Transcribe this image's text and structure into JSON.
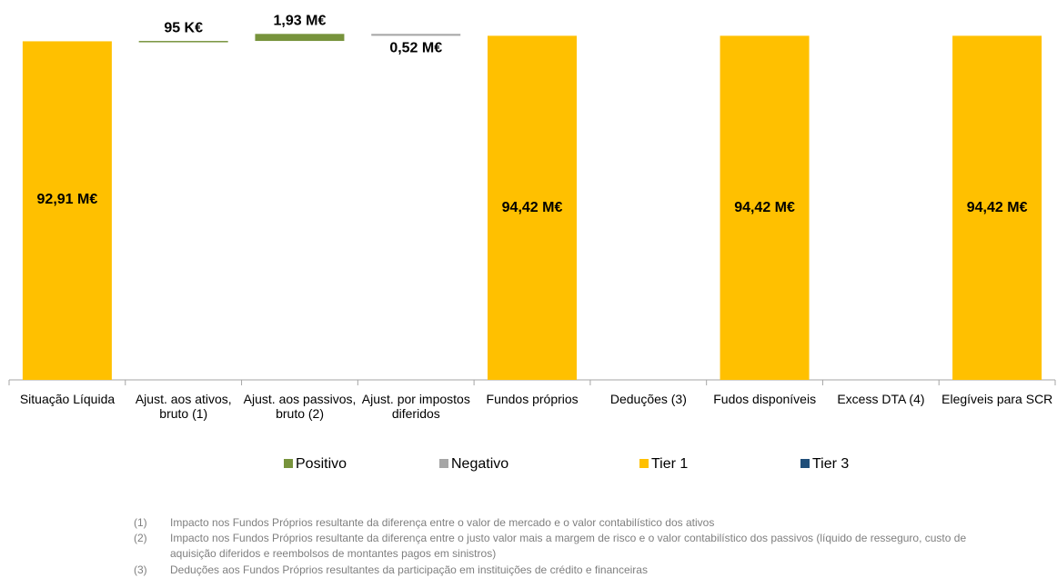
{
  "chart_data": {
    "type": "waterfall",
    "categories": [
      "Situação Líquida",
      "Ajust. aos ativos, bruto (1)",
      "Ajust. aos passivos, bruto (2)",
      "Ajust. por impostos diferidos",
      "Fundos próprios",
      "Deduções (3)",
      "Fudos disponíveis",
      "Excess DTA (4)",
      "Elegíveis para SCR"
    ],
    "series": [
      {
        "name": "Positivo",
        "color": "#77933c",
        "values": [
          null,
          0.095,
          1.93,
          null,
          null,
          null,
          null,
          null,
          null
        ],
        "value_labels": [
          null,
          "95 K€",
          "1,93 M€",
          null,
          null,
          null,
          null,
          null,
          null
        ]
      },
      {
        "name": "Negativo",
        "color": "#a6a6a6",
        "values": [
          null,
          null,
          null,
          0.52,
          null,
          null,
          null,
          null,
          null
        ],
        "value_labels": [
          null,
          null,
          null,
          "0,52 M€",
          null,
          null,
          null,
          null,
          null
        ]
      },
      {
        "name": "Tier 1",
        "color": "#ffc000",
        "values": [
          92.91,
          null,
          null,
          null,
          94.42,
          null,
          94.42,
          null,
          94.42
        ],
        "value_labels": [
          "92,91 M€",
          null,
          null,
          null,
          "94,42 M€",
          null,
          "94,42 M€",
          null,
          "94,42 M€"
        ]
      },
      {
        "name": "Tier 3",
        "color": "#1f4e79",
        "values": [
          null,
          null,
          null,
          null,
          null,
          null,
          null,
          null,
          null
        ],
        "value_labels": [
          null,
          null,
          null,
          null,
          null,
          null,
          null,
          null,
          null
        ]
      }
    ]
  },
  "notes": [
    {
      "number": "(1)",
      "text": "Impacto nos Fundos Próprios resultante da diferença entre o valor de mercado e o valor contabilístico dos ativos"
    },
    {
      "number": "(2)",
      "text": "Impacto nos Fundos Próprios resultante da diferença entre o justo valor mais a margem de risco e o valor contabilístico dos passivos (líquido de resseguro, custo de aquisição diferidos e reembolsos de montantes pagos em sinistros)"
    },
    {
      "number": "(3)",
      "text": "Deduções aos Fundos Próprios resultantes da participação em instituições de crédito e financeiras"
    }
  ]
}
